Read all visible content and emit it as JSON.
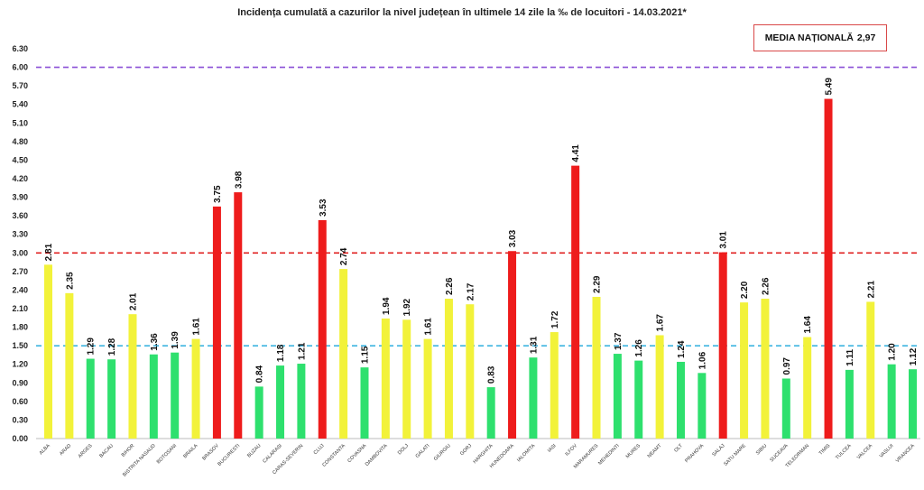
{
  "chart_data": {
    "type": "bar",
    "title": "Incidența cumulată a cazurilor la nivel județean în ultimele 14 zile la ‰ de locuitori - 14.03.2021*",
    "media": {
      "label": "MEDIA NAȚIONALĂ",
      "value": "2,97"
    },
    "ylim": [
      0,
      6.3
    ],
    "yticks": [
      "0.00",
      "0.30",
      "0.60",
      "0.90",
      "1.20",
      "1.50",
      "1.80",
      "2.10",
      "2.40",
      "2.70",
      "3.00",
      "3.30",
      "3.60",
      "3.90",
      "4.20",
      "4.50",
      "4.80",
      "5.10",
      "5.40",
      "5.70",
      "6.00",
      "6.30"
    ],
    "reference_lines": [
      {
        "value": 6.0,
        "color": "#8a4fd6",
        "style": "dashed"
      },
      {
        "value": 3.0,
        "color": "#e02020",
        "style": "dashed"
      },
      {
        "value": 1.5,
        "color": "#3db4e0",
        "style": "dashed"
      }
    ],
    "colors": {
      "green": "#2ee06e",
      "yellow": "#f2f23a",
      "red": "#ee1c1c"
    },
    "categories": [
      "ALBA",
      "ARAD",
      "ARGES",
      "BACAU",
      "BIHOR",
      "BISTRITA NASAUD",
      "BOTOSANI",
      "BRAILA",
      "BRASOV",
      "BUCURESTI",
      "BUZAU",
      "CALARASI",
      "CARAS-SEVERIN",
      "CLUJ",
      "CONSTANTA",
      "COVASNA",
      "DAMBOVITA",
      "DOLJ",
      "GALATI",
      "GIURGIU",
      "GORJ",
      "HARGHITA",
      "HUNEDOARA",
      "IALOMITA",
      "IASI",
      "ILFOV",
      "MARAMURES",
      "MEHEDINTI",
      "MURES",
      "NEAMT",
      "OLT",
      "PRAHOVA",
      "SALAJ",
      "SATU MARE",
      "SIBIU",
      "SUCEAVA",
      "TELEORMAN",
      "TIMIS",
      "TULCEA",
      "VALCEA",
      "VASLUI",
      "VRANCEA"
    ],
    "values": [
      2.81,
      2.35,
      1.29,
      1.28,
      2.01,
      1.36,
      1.39,
      1.61,
      3.75,
      3.98,
      0.84,
      1.18,
      1.21,
      3.53,
      2.74,
      1.15,
      1.94,
      1.92,
      1.61,
      2.26,
      2.17,
      0.83,
      3.03,
      1.31,
      1.72,
      4.41,
      2.29,
      1.37,
      1.26,
      1.67,
      1.24,
      1.06,
      3.01,
      2.2,
      2.26,
      0.97,
      1.64,
      5.49,
      1.11,
      2.21,
      1.2,
      1.12
    ],
    "labels": [
      "2.81",
      "2.35",
      "1.29",
      "1.28",
      "2.01",
      "1.36",
      "1.39",
      "1.61",
      "3.75",
      "3.98",
      "0.84",
      "1.18",
      "1.21",
      "3.53",
      "2.74",
      "1.15",
      "1.94",
      "1.92",
      "1.61",
      "2.26",
      "2.17",
      "0.83",
      "3.03",
      "1.31",
      "1.72",
      "4.41",
      "2.29",
      "1.37",
      "1.26",
      "1.67",
      "1.24",
      "1.06",
      "3.01",
      "2.20",
      "2.26",
      "0.97",
      "1.64",
      "5.49",
      "1.11",
      "2.21",
      "1.20",
      "1.12"
    ],
    "bar_colors": [
      "yellow",
      "yellow",
      "green",
      "green",
      "yellow",
      "green",
      "green",
      "yellow",
      "red",
      "red",
      "green",
      "green",
      "green",
      "red",
      "yellow",
      "green",
      "yellow",
      "yellow",
      "yellow",
      "yellow",
      "yellow",
      "green",
      "red",
      "green",
      "yellow",
      "red",
      "yellow",
      "green",
      "green",
      "yellow",
      "green",
      "green",
      "red",
      "yellow",
      "yellow",
      "green",
      "yellow",
      "red",
      "green",
      "yellow",
      "green",
      "green"
    ]
  }
}
